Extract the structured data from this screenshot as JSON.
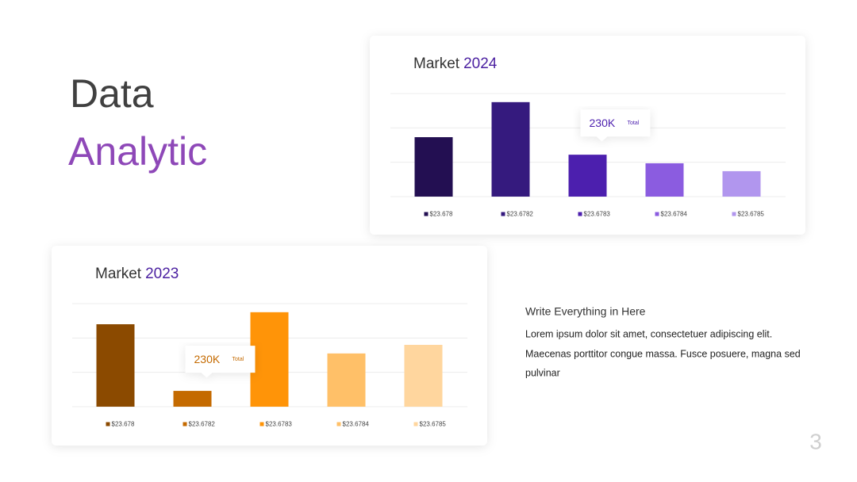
{
  "slide": {
    "title_line1": "Data",
    "title_line2": "Analytic",
    "heading": "Write Everything in Here",
    "body_lines": [
      "Lorem ipsum dolor sit amet, consectetuer adipiscing elit.",
      "Maecenas porttitor congue massa. Fusce posuere, magna sed",
      "pulvinar"
    ],
    "page_number": "3"
  },
  "chart_data": [
    {
      "type": "bar",
      "title_prefix": "Market",
      "title_highlight": "2024",
      "highlight_color": "#4a1fa0",
      "categories": [
        "$23.678",
        "$23.6782",
        "$23.6783",
        "$23.6784",
        "$23.6785"
      ],
      "values": [
        1.73,
        2.75,
        1.22,
        0.97,
        0.74
      ],
      "colors": [
        "#230f52",
        "#351a7e",
        "#4c1fae",
        "#8b5ce0",
        "#b196ee"
      ],
      "ylim": [
        0,
        3
      ],
      "yticks": [
        0,
        1,
        2,
        3
      ],
      "grid": true,
      "annotation": {
        "text": "230K",
        "label": "Total",
        "bar": 2
      }
    },
    {
      "type": "bar",
      "title_prefix": "Market",
      "title_highlight": "2023",
      "highlight_color": "#4a1fa0",
      "categories": [
        "$23.678",
        "$23.6782",
        "$23.6783",
        "$23.6784",
        "$23.6785"
      ],
      "values": [
        2.4,
        0.46,
        2.75,
        1.55,
        1.8
      ],
      "colors": [
        "#8b4a00",
        "#c46a00",
        "#ff9408",
        "#ffc068",
        "#ffd69e"
      ],
      "ylim": [
        0,
        3
      ],
      "yticks": [
        0,
        1,
        2,
        3
      ],
      "grid": true,
      "annotation": {
        "text": "230K",
        "label": "Total",
        "bar": 1
      }
    }
  ]
}
